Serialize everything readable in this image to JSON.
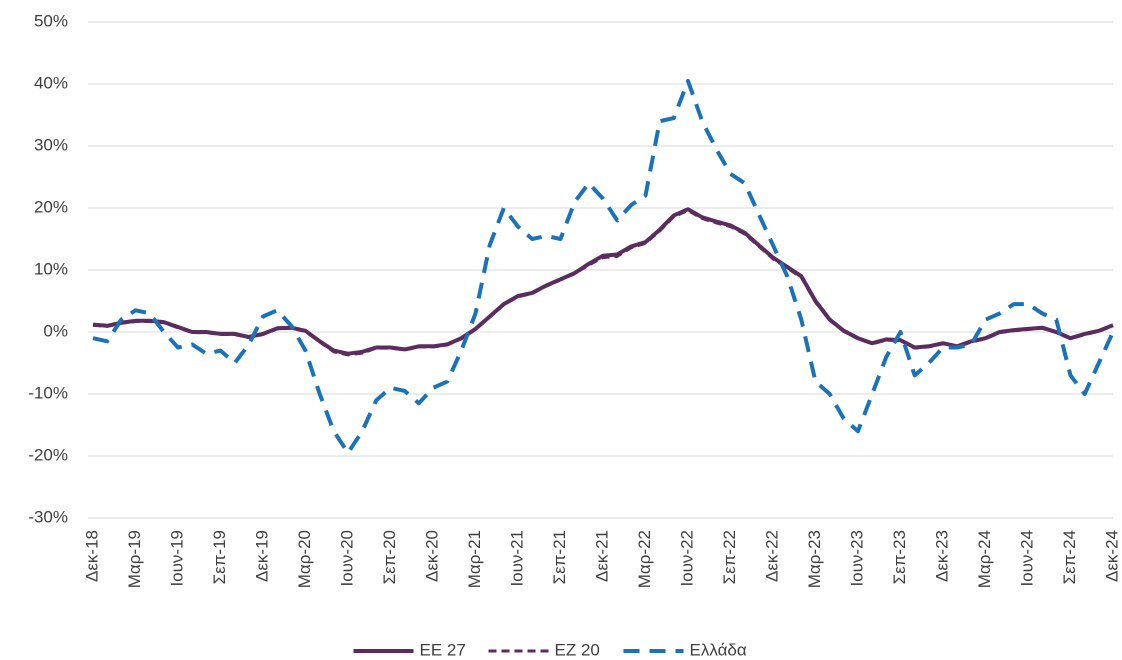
{
  "chart_data": {
    "type": "line",
    "categories": [
      "Δεκ-18",
      null,
      null,
      "Μαρ-19",
      null,
      null,
      "Ιουν-19",
      null,
      null,
      "Σεπ-19",
      null,
      null,
      "Δεκ-19",
      null,
      null,
      "Μαρ-20",
      null,
      null,
      "Ιουν-20",
      null,
      null,
      "Σεπ-20",
      null,
      null,
      "Δεκ-20",
      null,
      null,
      "Μαρ-21",
      null,
      null,
      "Ιουν-21",
      null,
      null,
      "Σεπ-21",
      null,
      null,
      "Δεκ-21",
      null,
      null,
      "Μαρ-22",
      null,
      null,
      "Ιουν-22",
      null,
      null,
      "Σεπ-22",
      null,
      null,
      "Δεκ-22",
      null,
      null,
      "Μαρ-23",
      null,
      null,
      "Ιουν-23",
      null,
      null,
      "Σεπ-23",
      null,
      null,
      "Δεκ-23",
      null,
      null,
      "Μαρ-24",
      null,
      null,
      "Ιουν-24",
      null,
      null,
      "Σεπ-24",
      null,
      null,
      "Δεκ-24"
    ],
    "series": [
      {
        "name": "ΕΕ 27",
        "color": "#5b2d5e",
        "dash": "solid",
        "values": [
          1.2,
          1,
          1.5,
          1.8,
          1.8,
          1.6,
          0.8,
          0,
          0,
          -0.3,
          -0.3,
          -0.8,
          -0.3,
          0.6,
          0.7,
          0.2,
          -1.5,
          -3,
          -3.5,
          -3.2,
          -2.5,
          -2.5,
          -2.8,
          -2.3,
          -2.3,
          -2,
          -1,
          0.5,
          2.5,
          4.5,
          5.8,
          6.3,
          7.5,
          8.5,
          9.5,
          11,
          12.3,
          12.5,
          13.8,
          14.5,
          16.5,
          18.8,
          19.8,
          18.5,
          17.8,
          17.2,
          16,
          14,
          12,
          10.5,
          9,
          5,
          2,
          0.2,
          -1,
          -1.8,
          -1.2,
          -1.3,
          -2.5,
          -2.3,
          -1.8,
          -2.3,
          -1.5,
          -1,
          0,
          0.3,
          0.5,
          0.7,
          0,
          -1,
          -0.3,
          0.2,
          1.1
        ]
      },
      {
        "name": "ΕΖ 20",
        "color": "#5b2d5e",
        "dash": "dashed",
        "values": [
          1.1,
          0.9,
          1.4,
          1.7,
          1.7,
          1.5,
          0.7,
          -0.1,
          -0.1,
          -0.4,
          -0.4,
          -0.9,
          -0.4,
          0.5,
          0.6,
          0.1,
          -1.6,
          -3.2,
          -3.7,
          -3.4,
          -2.6,
          -2.6,
          -2.9,
          -2.4,
          -2.4,
          -2.1,
          -1.1,
          0.4,
          2.4,
          4.4,
          5.7,
          6.2,
          7.4,
          8.4,
          9.4,
          10.8,
          12,
          12.2,
          13.6,
          14.3,
          16.3,
          18.6,
          19.6,
          18.3,
          17.6,
          17,
          15.8,
          13.8,
          11.8,
          10.3,
          8.8,
          4.8,
          1.9,
          0.1,
          -1.1,
          -1.9,
          -1.3,
          -1.4,
          -2.6,
          -2.4,
          -1.9,
          -2.4,
          -1.6,
          -1.1,
          -0.1,
          0.2,
          0.4,
          0.6,
          -0.1,
          -1.1,
          -0.4,
          0.1,
          1
        ]
      },
      {
        "name": "Ελλάδα",
        "color": "#1a72bb",
        "dash": "dashed",
        "values": [
          -1,
          -1.5,
          2,
          3.5,
          3,
          0,
          -2.5,
          -2,
          -3.5,
          -3,
          -5,
          -2,
          2.5,
          3.5,
          1,
          -3,
          -10,
          -16,
          -19.5,
          -16,
          -11,
          -9,
          -9.5,
          -11.5,
          -9,
          -8,
          -3,
          3,
          14,
          20,
          17,
          15,
          15.5,
          15,
          21,
          24,
          21.5,
          18,
          20.5,
          22,
          34,
          34.5,
          40.5,
          34,
          29.5,
          25.5,
          24,
          19,
          14,
          9,
          2,
          -8,
          -10,
          -14,
          -16,
          -10,
          -4,
          0,
          -7,
          -5,
          -2.5,
          -2.5,
          -2,
          2,
          3,
          4.5,
          4.5,
          3,
          2,
          -7,
          -10,
          -5,
          0
        ]
      }
    ],
    "ylim": [
      -30,
      50
    ],
    "yticks": [
      {
        "value": -30,
        "label": "-30%"
      },
      {
        "value": -20,
        "label": "-20%"
      },
      {
        "value": -10,
        "label": "-10%"
      },
      {
        "value": 0,
        "label": "0%"
      },
      {
        "value": 10,
        "label": "10%"
      },
      {
        "value": 20,
        "label": "20%"
      },
      {
        "value": 30,
        "label": "30%"
      },
      {
        "value": 40,
        "label": "40%"
      },
      {
        "value": 50,
        "label": "50%"
      }
    ],
    "grid": true
  }
}
